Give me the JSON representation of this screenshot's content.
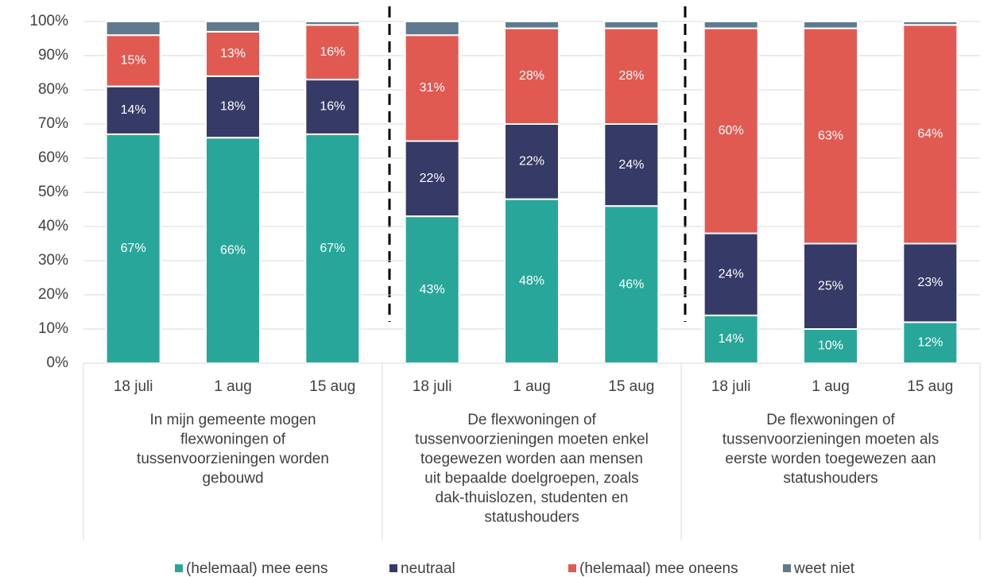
{
  "chart_data": {
    "type": "stacked_bar",
    "categories": [
      "18 juli",
      "1 aug",
      "15 aug",
      "18 juli",
      "1 aug",
      "15 aug",
      "18 juli",
      "1 aug",
      "15 aug"
    ],
    "groups": [
      [
        "In mijn gemeente mogen",
        "flexwoningen of",
        "tussenvoorzieningen worden",
        "gebouwd"
      ],
      [
        "De flexwoningen of",
        "tussenvoorzieningen moeten enkel",
        "toegewezen worden aan mensen",
        "uit bepaalde doelgroepen, zoals",
        "dak-thuislozen, studenten en",
        "statushouders"
      ],
      [
        "De flexwoningen of",
        "tussenvoorzieningen moeten als",
        "eerste worden toegewezen aan",
        "statushouders"
      ]
    ],
    "series": [
      {
        "name": "(helemaal) mee eens",
        "color": "#29a69a",
        "values": [
          67,
          66,
          67,
          43,
          48,
          46,
          14,
          10,
          12
        ],
        "value_labels": [
          "67%",
          "66%",
          "67%",
          "43%",
          "48%",
          "46%",
          "14%",
          "10%",
          "12%"
        ]
      },
      {
        "name": "neutraal",
        "color": "#363a66",
        "values": [
          14,
          18,
          16,
          22,
          22,
          24,
          24,
          25,
          23
        ],
        "value_labels": [
          "14%",
          "18%",
          "16%",
          "22%",
          "22%",
          "24%",
          "24%",
          "25%",
          "23%"
        ]
      },
      {
        "name": "(helemaal) mee oneens",
        "color": "#e05a51",
        "values": [
          15,
          13,
          16,
          31,
          28,
          28,
          60,
          63,
          64
        ],
        "value_labels": [
          "15%",
          "13%",
          "16%",
          "31%",
          "28%",
          "28%",
          "60%",
          "63%",
          "64%"
        ]
      },
      {
        "name": "weet niet",
        "color": "#5f7a8e",
        "values": [
          4,
          3,
          1,
          4,
          2,
          2,
          2,
          2,
          1
        ]
      }
    ],
    "ylim": [
      0,
      100
    ],
    "yticks": [
      {
        "value": 0,
        "label": "0%"
      },
      {
        "value": 10,
        "label": "10%"
      },
      {
        "value": 20,
        "label": "20%"
      },
      {
        "value": 30,
        "label": "30%"
      },
      {
        "value": 40,
        "label": "40%"
      },
      {
        "value": 50,
        "label": "50%"
      },
      {
        "value": 60,
        "label": "60%"
      },
      {
        "value": 70,
        "label": "70%"
      },
      {
        "value": 80,
        "label": "80%"
      },
      {
        "value": 90,
        "label": "90%"
      },
      {
        "value": 100,
        "label": "100%"
      }
    ],
    "grid": true,
    "legend": "bottom"
  }
}
